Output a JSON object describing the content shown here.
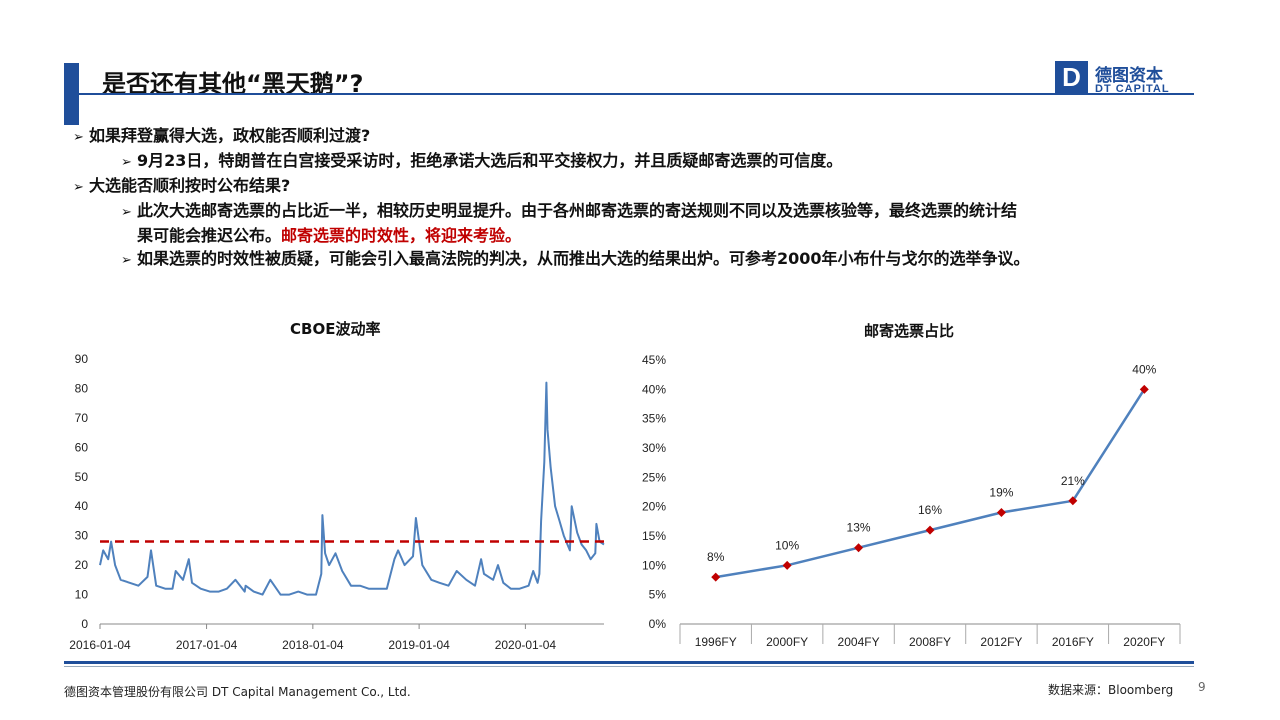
{
  "slide": {
    "title": "是否还有其他“黑天鹅”?",
    "page_number": "9",
    "footer_left": "德图资本管理股份有限公司 DT Capital Management Co., Ltd.",
    "footer_right": "数据来源：Bloomberg",
    "accent_color": "#1f4e9a",
    "highlight_color": "#c00000"
  },
  "logo": {
    "mark": "D",
    "name_cn": "德图资本",
    "name_en": "DT CAPITAL"
  },
  "bullets": {
    "q1": "如果拜登赢得大选，政权能否顺利过渡?",
    "q1_a": "9月23日，特朗普在白宫接受采访时，拒绝承诺大选后和平交接权力，并且质疑邮寄选票的可信度。",
    "q2": "大选能否顺利按时公布结果?",
    "q2_a_line1": "此次大选邮寄选票的占比近一半，相较历史明显提升。由于各州邮寄选票的寄送规则不同以及选票核验等，最终选票的统计结",
    "q2_a_line2": "果可能会推迟公布。",
    "q2_a_red": "邮寄选票的时效性，将迎来考验。",
    "q2_b": "如果选票的时效性被质疑，可能会引入最高法院的判决，从而推出大选的结果出炉。可参考2000年小布什与戈尔的选举争议。",
    "marker_icon": "arrow-bullet-icon"
  },
  "chart_data": [
    {
      "type": "line",
      "title": "CBOE波动率",
      "x_tick_labels": [
        "2016-01-04",
        "2017-01-04",
        "2018-01-04",
        "2019-01-04",
        "2020-01-04"
      ],
      "y_tick_labels": [
        "0",
        "10",
        "20",
        "30",
        "40",
        "50",
        "60",
        "70",
        "80",
        "90"
      ],
      "ylim": [
        0,
        90
      ],
      "xlim": [
        "2016-01-04",
        "2020-09-30"
      ],
      "series": [
        {
          "color": "#4f81bd",
          "x": [
            "2016-01-04",
            "2016-01-15",
            "2016-02-01",
            "2016-02-11",
            "2016-02-25",
            "2016-03-15",
            "2016-04-15",
            "2016-05-15",
            "2016-06-15",
            "2016-06-27",
            "2016-07-15",
            "2016-08-15",
            "2016-09-09",
            "2016-09-20",
            "2016-10-15",
            "2016-11-04",
            "2016-11-15",
            "2016-12-15",
            "2017-01-15",
            "2017-02-15",
            "2017-03-15",
            "2017-04-13",
            "2017-05-15",
            "2017-05-18",
            "2017-06-15",
            "2017-07-15",
            "2017-08-11",
            "2017-09-15",
            "2017-10-15",
            "2017-11-15",
            "2017-12-15",
            "2018-01-15",
            "2018-02-02",
            "2018-02-06",
            "2018-02-15",
            "2018-03-01",
            "2018-03-23",
            "2018-04-15",
            "2018-05-15",
            "2018-06-15",
            "2018-07-15",
            "2018-08-15",
            "2018-09-15",
            "2018-10-11",
            "2018-10-24",
            "2018-11-15",
            "2018-12-14",
            "2018-12-24",
            "2019-01-15",
            "2019-02-15",
            "2019-03-15",
            "2019-04-15",
            "2019-05-13",
            "2019-06-15",
            "2019-07-15",
            "2019-08-05",
            "2019-08-15",
            "2019-09-15",
            "2019-10-02",
            "2019-10-20",
            "2019-11-15",
            "2019-12-15",
            "2020-01-15",
            "2020-01-31",
            "2020-02-15",
            "2020-02-21",
            "2020-02-27",
            "2020-03-09",
            "2020-03-16",
            "2020-03-20",
            "2020-03-31",
            "2020-04-15",
            "2020-04-30",
            "2020-05-15",
            "2020-06-05",
            "2020-06-11",
            "2020-06-30",
            "2020-07-15",
            "2020-07-31",
            "2020-08-15",
            "2020-08-31",
            "2020-09-04",
            "2020-09-15",
            "2020-09-30"
          ],
          "y": [
            20,
            25,
            22,
            28,
            20,
            15,
            14,
            13,
            16,
            25,
            13,
            12,
            12,
            18,
            15,
            22,
            14,
            12,
            11,
            11,
            12,
            15,
            11,
            13,
            11,
            10,
            15,
            10,
            10,
            11,
            10,
            10,
            17,
            37,
            24,
            20,
            24,
            18,
            13,
            13,
            12,
            12,
            12,
            22,
            25,
            20,
            23,
            36,
            20,
            15,
            14,
            13,
            18,
            15,
            13,
            22,
            17,
            15,
            20,
            14,
            12,
            12,
            13,
            18,
            14,
            17,
            35,
            55,
            82,
            66,
            53,
            40,
            35,
            30,
            25,
            40,
            31,
            27,
            25,
            22,
            24,
            34,
            28,
            27
          ]
        }
      ],
      "reference_line": {
        "value": 28,
        "color": "#c00000",
        "style": "dashed"
      }
    },
    {
      "type": "line",
      "title": "邮寄选票占比",
      "categories": [
        "1996FY",
        "2000FY",
        "2004FY",
        "2008FY",
        "2012FY",
        "2016FY",
        "2020FY"
      ],
      "values": [
        8,
        10,
        13,
        16,
        19,
        21,
        40
      ],
      "data_labels": [
        "8%",
        "10%",
        "13%",
        "16%",
        "19%",
        "21%",
        "40%"
      ],
      "y_tick_labels": [
        "0%",
        "5%",
        "10%",
        "15%",
        "20%",
        "25%",
        "30%",
        "35%",
        "40%",
        "45%"
      ],
      "ylim": [
        0,
        45
      ],
      "line_color": "#4f81bd",
      "marker_color": "#c00000",
      "marker": "diamond"
    }
  ]
}
